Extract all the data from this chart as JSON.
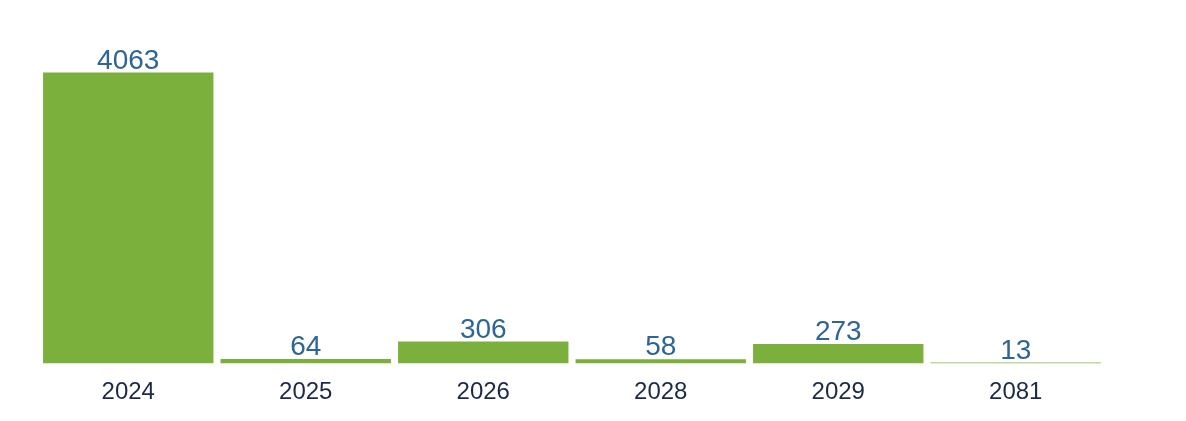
{
  "chart_data": {
    "type": "bar",
    "categories": [
      "2024",
      "2025",
      "2026",
      "2028",
      "2029",
      "2081"
    ],
    "values": [
      4063,
      64,
      306,
      58,
      273,
      13
    ],
    "color": "#7cb03c",
    "data_labels": true
  }
}
